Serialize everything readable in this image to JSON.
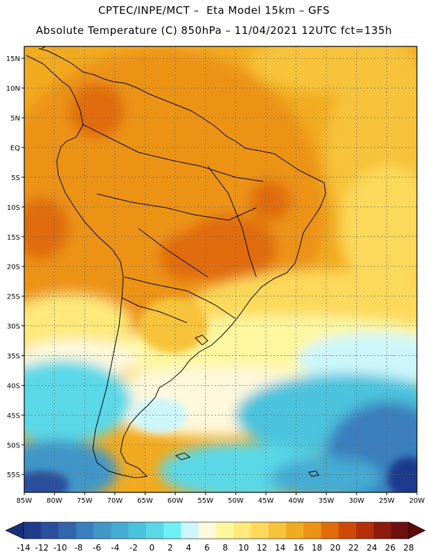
{
  "header": {
    "line1": "CPTEC/INPE/MCT –  Eta Model 15km – GFS",
    "line2": "Absolute Temperature (C) 850hPa – 11/04/2021 12UTC fct=135h"
  },
  "map": {
    "lon_range": [
      -85,
      -20
    ],
    "lat_range": [
      -58,
      17
    ],
    "lat_labels": [
      "15N",
      "10N",
      "5N",
      "EQ",
      "5S",
      "10S",
      "15S",
      "20S",
      "25S",
      "30S",
      "35S",
      "40S",
      "45S",
      "50S",
      "55S"
    ],
    "lon_labels": [
      "85W",
      "80W",
      "75W",
      "70W",
      "65W",
      "60W",
      "55W",
      "50W",
      "45W",
      "40W",
      "35W",
      "30W",
      "25W",
      "20W"
    ],
    "gridlines": true,
    "field": "Absolute Temperature (C) 850hPa"
  },
  "colorbar": {
    "labels": [
      "-14",
      "-12",
      "-10",
      "-8",
      "-6",
      "-4",
      "-2",
      "0",
      "2",
      "4",
      "6",
      "8",
      "10",
      "12",
      "14",
      "16",
      "18",
      "20",
      "22",
      "24",
      "26",
      "28"
    ],
    "colors": [
      "#1f3b8c",
      "#2a4f9c",
      "#3166ad",
      "#3a7fbe",
      "#3f96c8",
      "#44acd3",
      "#4cc3dd",
      "#5ad8e8",
      "#6ff0f5",
      "#cdf6fb",
      "#fff8dc",
      "#fff6a0",
      "#fee97a",
      "#fcd95a",
      "#f6c33a",
      "#f1ab20",
      "#ec9316",
      "#e06c0c",
      "#cf4a08",
      "#b5300a",
      "#8e1c0c",
      "#6e1010"
    ],
    "under_color": "#1a2f7a",
    "over_color": "#5c0a0a"
  }
}
